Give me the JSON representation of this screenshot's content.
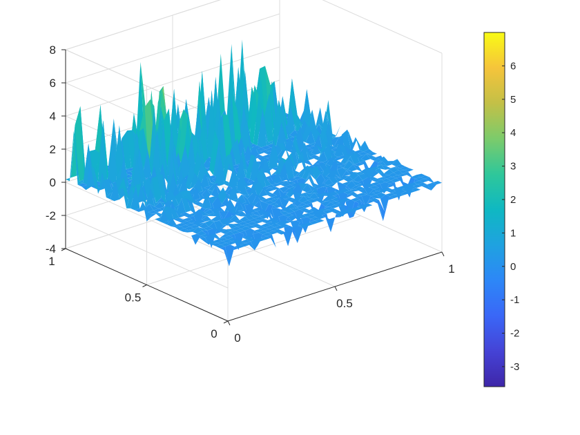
{
  "chart_data": {
    "type": "surface3d",
    "title": "",
    "xlabel": "",
    "ylabel": "",
    "zlabel": "",
    "xlim": [
      0,
      1
    ],
    "ylim": [
      0,
      1
    ],
    "zlim": [
      -4,
      8
    ],
    "x_ticks": [
      "0",
      "0.5",
      "1"
    ],
    "y_ticks": [
      "0",
      "0.5",
      "1"
    ],
    "z_ticks": [
      "-4",
      "-2",
      "0",
      "2",
      "4",
      "6",
      "8"
    ],
    "grid": true,
    "colormap": "parula",
    "colorbar": {
      "position": "right",
      "clim": [
        -3.6,
        7
      ],
      "ticks": [
        "-3",
        "-2",
        "-1",
        "0",
        "1",
        "2",
        "3",
        "4",
        "5",
        "6"
      ]
    },
    "surface": {
      "grid_size": 40,
      "base_value": 0,
      "approx_max": 7,
      "approx_min": -3.5,
      "description_values": {
        "spikes_near_y1_edge_max": 7,
        "typical_surface": 0.3
      }
    }
  }
}
